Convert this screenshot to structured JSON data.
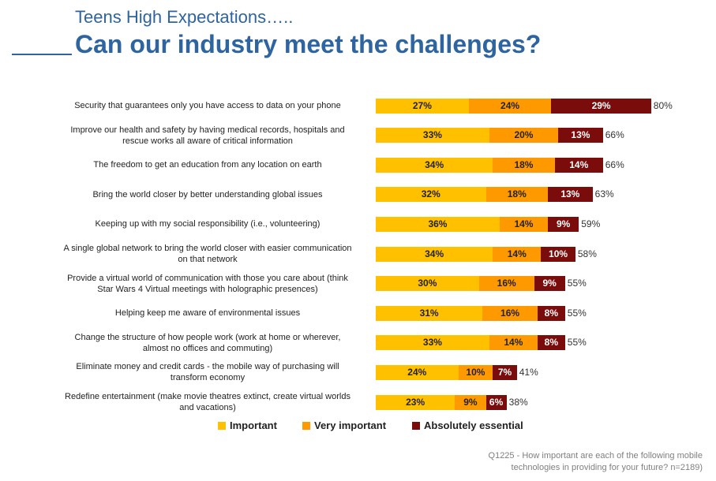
{
  "header": {
    "subtitle": "Teens High Expectations…..",
    "title": "Can our industry meet the challenges?"
  },
  "footnote": {
    "line1": "Q1225 - How important are each of the following mobile",
    "line2": "technologies in providing for your future? n=2189)"
  },
  "colors": {
    "title": "#2e64a0",
    "important": "#ffc000",
    "very_important": "#ff9900",
    "absolutely_essential": "#7b0c0c"
  },
  "chart_data": {
    "type": "bar",
    "orientation": "horizontal",
    "stacked": true,
    "title": "",
    "xlabel": "",
    "ylabel": "",
    "legend_position": "bottom",
    "grid": false,
    "categories": [
      "Security that guarantees only you have access to data on your phone",
      "Improve our health and safety by having medical records, hospitals and rescue works all aware of critical information",
      "The freedom to get an education from any location on earth",
      "Bring the world closer by better understanding global issues",
      "Keeping up with my social responsibility (i.e., volunteering)",
      "A single global network to bring the world closer with easier communication on that network",
      "Provide a virtual world of communication with those you care about (think Star Wars 4 Virtual meetings with holographic presences)",
      "Helping keep me aware of environmental issues",
      "Change the structure of how people work (work at home or wherever, almost no offices and commuting)",
      "Eliminate money and credit cards - the mobile way of purchasing will transform economy",
      "Redefine entertainment (make movie theatres extinct, create virtual worlds and vacations)"
    ],
    "category_lines": [
      [
        "Security that guarantees only you have access to data on your phone"
      ],
      [
        "Improve our health and safety by having medical records, hospitals and",
        "rescue works all aware of critical information"
      ],
      [
        "The freedom to get an education from any location on earth"
      ],
      [
        "Bring the world closer by better understanding global issues"
      ],
      [
        "Keeping up with my social responsibility (i.e., volunteering)"
      ],
      [
        "A single global network to bring the world closer with easier communication",
        "on that network"
      ],
      [
        "Provide a virtual world of communication with those you care about (think",
        "Star Wars 4 Virtual meetings with holographic presences)"
      ],
      [
        "Helping keep me aware of environmental issues"
      ],
      [
        "Change the structure of how people work (work at home or wherever,",
        "almost no offices and commuting)"
      ],
      [
        "Eliminate money and credit cards - the mobile way of purchasing will",
        "transform economy"
      ],
      [
        "Redefine entertainment (make movie theatres extinct, create virtual worlds",
        "and vacations)"
      ]
    ],
    "series": [
      {
        "name": "Important",
        "color": "#ffc000",
        "values": [
          27,
          33,
          34,
          32,
          36,
          34,
          30,
          31,
          33,
          24,
          23
        ]
      },
      {
        "name": "Very important",
        "color": "#ff9900",
        "values": [
          24,
          20,
          18,
          18,
          14,
          14,
          16,
          16,
          14,
          10,
          9
        ]
      },
      {
        "name": "Absolutely essential",
        "color": "#7b0c0c",
        "values": [
          29,
          13,
          14,
          13,
          9,
          10,
          9,
          8,
          8,
          7,
          6
        ]
      }
    ],
    "totals": [
      80,
      66,
      66,
      63,
      59,
      58,
      55,
      55,
      55,
      41,
      38
    ],
    "value_suffix": "%"
  }
}
